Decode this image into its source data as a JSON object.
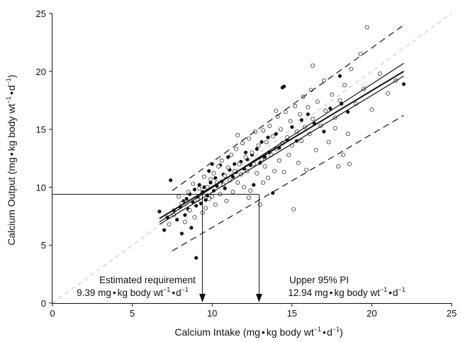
{
  "chart_data": {
    "type": "scatter",
    "title": "",
    "xlabel": {
      "main": "Calcium Intake (mg",
      "mid": "kg body wt",
      "exp1": "−1",
      "mid2": "d",
      "exp2": "−1",
      "close": ")"
    },
    "ylabel": {
      "main": "Calcium Output (mg",
      "mid": "kg body wt",
      "exp1": "−1",
      "mid2": "d",
      "exp2": "−1",
      "close": ")"
    },
    "xlim": [
      0,
      25
    ],
    "ylim": [
      0,
      25
    ],
    "xticks": [
      "0",
      "5",
      "10",
      "15",
      "20",
      "25"
    ],
    "yticks": [
      "0",
      "5",
      "10",
      "15",
      "20",
      "25"
    ],
    "grid": false,
    "identity_line": {
      "x": [
        0,
        25
      ],
      "y": [
        0,
        25
      ],
      "style": "dashed-light"
    },
    "regression_lines": [
      {
        "x": [
          6.7,
          22
        ],
        "y": [
          7.0,
          20.7
        ]
      },
      {
        "x": [
          6.7,
          22
        ],
        "y": [
          7.3,
          20.0
        ]
      },
      {
        "x": [
          6.7,
          22
        ],
        "y": [
          6.8,
          19.6
        ]
      }
    ],
    "prediction_interval": {
      "upper": {
        "x": [
          7.5,
          22
        ],
        "y": [
          9.7,
          24.0
        ]
      },
      "lower": {
        "x": [
          7.5,
          22
        ],
        "y": [
          4.5,
          16.2
        ]
      }
    },
    "annotations": {
      "estimated": {
        "label": "Estimated requirement",
        "value": "9.39 mg",
        "unit_mid": "kg body wt",
        "exp1": "−1",
        "unit_mid2": "d",
        "exp2": "−1",
        "x": 9.39,
        "y": 9.39
      },
      "upper": {
        "label": "Upper 95% PI",
        "value": "12.94 mg",
        "unit_mid": "kg body wt",
        "exp1": "−1",
        "unit_mid2": "d",
        "exp2": "−1",
        "x": 12.94,
        "y": 9.39
      }
    },
    "series": [
      {
        "marker": "filled",
        "points": [
          [
            6.7,
            7.9
          ],
          [
            7.0,
            6.3
          ],
          [
            7.2,
            7.4
          ],
          [
            7.4,
            10.6
          ],
          [
            7.6,
            8.0
          ],
          [
            7.8,
            7.2
          ],
          [
            8.0,
            8.3
          ],
          [
            8.1,
            6.0
          ],
          [
            8.2,
            8.8
          ],
          [
            8.3,
            7.6
          ],
          [
            8.4,
            9.0
          ],
          [
            8.5,
            8.1
          ],
          [
            8.6,
            9.4
          ],
          [
            8.7,
            6.5
          ],
          [
            8.8,
            8.7
          ],
          [
            8.9,
            9.8
          ],
          [
            9.0,
            8.4
          ],
          [
            9.0,
            3.9
          ],
          [
            9.1,
            9.1
          ],
          [
            9.2,
            10.2
          ],
          [
            9.3,
            8.6
          ],
          [
            9.4,
            9.6
          ],
          [
            9.5,
            10.0
          ],
          [
            9.6,
            8.9
          ],
          [
            9.7,
            9.3
          ],
          [
            9.8,
            11.4
          ],
          [
            9.9,
            10.4
          ],
          [
            10.0,
            12.0
          ],
          [
            10.1,
            9.7
          ],
          [
            10.2,
            10.8
          ],
          [
            10.3,
            10.1
          ],
          [
            10.5,
            11.9
          ],
          [
            10.6,
            10.5
          ],
          [
            10.7,
            11.1
          ],
          [
            10.8,
            9.9
          ],
          [
            11.0,
            12.6
          ],
          [
            11.1,
            11.5
          ],
          [
            11.3,
            10.9
          ],
          [
            11.4,
            12.0
          ],
          [
            11.5,
            11.3
          ],
          [
            11.6,
            14.5
          ],
          [
            11.8,
            12.2
          ],
          [
            12.0,
            11.6
          ],
          [
            12.1,
            13.0
          ],
          [
            12.2,
            12.4
          ],
          [
            12.4,
            11.9
          ],
          [
            12.5,
            12.8
          ],
          [
            12.6,
            10.2
          ],
          [
            12.8,
            13.3
          ],
          [
            13.0,
            12.1
          ],
          [
            13.1,
            13.9
          ],
          [
            13.3,
            12.6
          ],
          [
            13.5,
            14.3
          ],
          [
            13.6,
            13.0
          ],
          [
            13.8,
            9.5
          ],
          [
            14.0,
            14.6
          ],
          [
            14.2,
            13.4
          ],
          [
            14.4,
            18.6
          ],
          [
            14.5,
            18.7
          ],
          [
            14.7,
            14.1
          ],
          [
            15.0,
            15.2
          ],
          [
            15.3,
            14.0
          ],
          [
            15.6,
            15.8
          ],
          [
            16.0,
            16.3
          ],
          [
            16.4,
            15.5
          ],
          [
            17.0,
            14.8
          ],
          [
            17.4,
            16.8
          ],
          [
            18.0,
            19.6
          ],
          [
            18.1,
            17.2
          ],
          [
            18.5,
            16.5
          ],
          [
            22.0,
            18.9
          ]
        ]
      },
      {
        "marker": "open",
        "points": [
          [
            7.3,
            6.8
          ],
          [
            7.6,
            7.6
          ],
          [
            7.9,
            9.2
          ],
          [
            8.1,
            8.6
          ],
          [
            8.3,
            7.0
          ],
          [
            8.5,
            9.6
          ],
          [
            8.6,
            8.0
          ],
          [
            8.8,
            10.3
          ],
          [
            8.9,
            7.4
          ],
          [
            9.1,
            8.9
          ],
          [
            9.2,
            9.9
          ],
          [
            9.4,
            7.8
          ],
          [
            9.5,
            10.9
          ],
          [
            9.6,
            8.2
          ],
          [
            9.7,
            10.0
          ],
          [
            9.8,
            9.0
          ],
          [
            9.9,
            10.7
          ],
          [
            10.0,
            9.2
          ],
          [
            10.1,
            11.2
          ],
          [
            10.2,
            8.5
          ],
          [
            10.3,
            10.4
          ],
          [
            10.4,
            11.8
          ],
          [
            10.5,
            9.4
          ],
          [
            10.6,
            12.3
          ],
          [
            10.7,
            10.2
          ],
          [
            10.8,
            11.0
          ],
          [
            10.9,
            8.8
          ],
          [
            11.0,
            11.7
          ],
          [
            11.1,
            10.6
          ],
          [
            11.2,
            12.8
          ],
          [
            11.3,
            9.6
          ],
          [
            11.4,
            11.4
          ],
          [
            11.5,
            13.3
          ],
          [
            11.6,
            10.4
          ],
          [
            11.7,
            12.0
          ],
          [
            11.8,
            11.1
          ],
          [
            11.9,
            13.8
          ],
          [
            12.0,
            10.0
          ],
          [
            12.1,
            12.6
          ],
          [
            12.2,
            11.4
          ],
          [
            12.3,
            14.2
          ],
          [
            12.4,
            9.7
          ],
          [
            12.5,
            13.0
          ],
          [
            12.6,
            12.0
          ],
          [
            12.7,
            14.8
          ],
          [
            12.8,
            11.2
          ],
          [
            12.9,
            13.6
          ],
          [
            13.0,
            8.5
          ],
          [
            13.1,
            12.4
          ],
          [
            13.2,
            14.9
          ],
          [
            13.3,
            11.8
          ],
          [
            13.4,
            13.9
          ],
          [
            13.5,
            10.8
          ],
          [
            13.6,
            15.3
          ],
          [
            13.7,
            12.8
          ],
          [
            13.8,
            14.4
          ],
          [
            13.9,
            11.4
          ],
          [
            14.0,
            13.3
          ],
          [
            14.1,
            16.1
          ],
          [
            14.2,
            12.3
          ],
          [
            14.3,
            15.0
          ],
          [
            14.4,
            13.8
          ],
          [
            14.5,
            11.3
          ],
          [
            14.6,
            16.5
          ],
          [
            14.7,
            14.3
          ],
          [
            14.8,
            12.8
          ],
          [
            14.9,
            15.7
          ],
          [
            15.0,
            13.6
          ],
          [
            15.1,
            8.1
          ],
          [
            15.2,
            17.0
          ],
          [
            15.3,
            14.8
          ],
          [
            15.4,
            12.1
          ],
          [
            15.5,
            16.3
          ],
          [
            15.6,
            14.0
          ],
          [
            15.7,
            17.8
          ],
          [
            15.8,
            15.2
          ],
          [
            15.9,
            11.5
          ],
          [
            16.0,
            16.9
          ],
          [
            16.1,
            14.6
          ],
          [
            16.2,
            18.4
          ],
          [
            16.3,
            15.9
          ],
          [
            16.5,
            13.2
          ],
          [
            16.6,
            17.4
          ],
          [
            16.8,
            15.3
          ],
          [
            17.0,
            19.2
          ],
          [
            17.1,
            16.6
          ],
          [
            17.3,
            13.9
          ],
          [
            17.5,
            18.0
          ],
          [
            17.7,
            16.0
          ],
          [
            17.9,
            11.8
          ],
          [
            18.0,
            17.5
          ],
          [
            18.2,
            12.8
          ],
          [
            18.3,
            18.8
          ],
          [
            18.5,
            14.6
          ],
          [
            18.7,
            20.2
          ],
          [
            19.0,
            17.2
          ],
          [
            19.3,
            21.5
          ],
          [
            19.5,
            18.5
          ],
          [
            19.7,
            23.8
          ],
          [
            20.0,
            16.7
          ],
          [
            20.5,
            19.8
          ],
          [
            21.0,
            18.1
          ],
          [
            21.5,
            19.2
          ],
          [
            16.3,
            20.5
          ],
          [
            14.0,
            16.6
          ],
          [
            13.2,
            10.4
          ],
          [
            11.6,
            14.5
          ],
          [
            12.3,
            9.1
          ],
          [
            18.6,
            12.0
          ],
          [
            17.7,
            15.1
          ]
        ]
      }
    ]
  }
}
